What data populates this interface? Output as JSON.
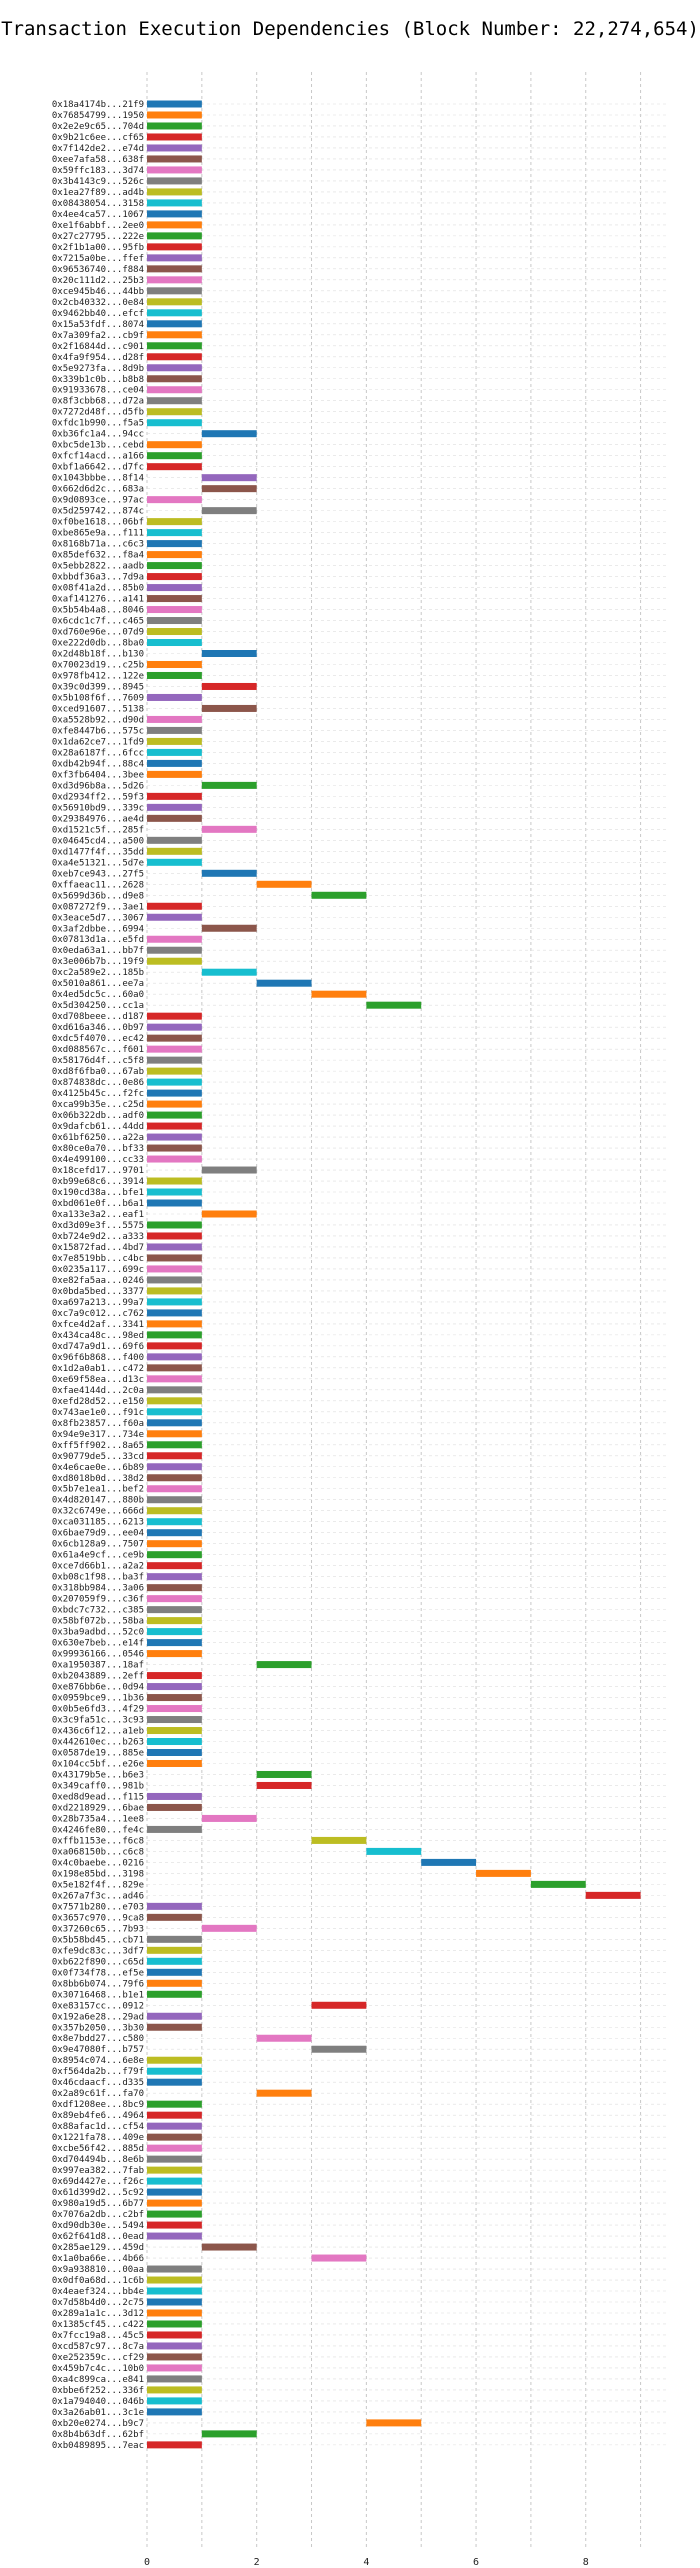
{
  "chart_data": {
    "type": "bar",
    "orientation": "horizontal-gantt",
    "title": "Transaction Execution Dependencies (Block Number: 22,274,654)",
    "xlabel": "",
    "ylabel": "",
    "xlim": [
      0,
      9.5
    ],
    "xticks": [
      0,
      2,
      4,
      6,
      8
    ],
    "grid": true,
    "legend": "none",
    "palette": [
      "#1f77b4",
      "#ff7f0e",
      "#2ca02c",
      "#d62728",
      "#9467bd",
      "#8c564b",
      "#e377c2",
      "#7f7f7f",
      "#bcbd22",
      "#17becf"
    ],
    "transactions": [
      {
        "label": "0x18a4174b...21f9",
        "start": 0
      },
      {
        "label": "0x76854799...1950",
        "start": 0
      },
      {
        "label": "0x2e2e9c65...704d",
        "start": 0
      },
      {
        "label": "0x9b21c6ee...cf65",
        "start": 0
      },
      {
        "label": "0x7f142de2...e74d",
        "start": 0
      },
      {
        "label": "0xee7afa58...638f",
        "start": 0
      },
      {
        "label": "0x59ffc183...3d74",
        "start": 0
      },
      {
        "label": "0x3b4143c9...526c",
        "start": 0
      },
      {
        "label": "0x1ea27f89...ad4b",
        "start": 0
      },
      {
        "label": "0x08438054...3158",
        "start": 0
      },
      {
        "label": "0x4ee4ca57...1067",
        "start": 0
      },
      {
        "label": "0xe1f6abbf...2ee0",
        "start": 0
      },
      {
        "label": "0x27c27795...222e",
        "start": 0
      },
      {
        "label": "0x2f1b1a00...95fb",
        "start": 0
      },
      {
        "label": "0x7215a0be...ffef",
        "start": 0
      },
      {
        "label": "0x96536740...f884",
        "start": 0
      },
      {
        "label": "0x20c111d2...25b3",
        "start": 0
      },
      {
        "label": "0xce945b46...44bb",
        "start": 0
      },
      {
        "label": "0x2cb40332...0e84",
        "start": 0
      },
      {
        "label": "0x9462bb40...efcf",
        "start": 0
      },
      {
        "label": "0x15a53fdf...8074",
        "start": 0
      },
      {
        "label": "0x7a309fa2...cb9f",
        "start": 0
      },
      {
        "label": "0x2f16844d...c901",
        "start": 0
      },
      {
        "label": "0x4fa9f954...d28f",
        "start": 0
      },
      {
        "label": "0x5e9273fa...8d9b",
        "start": 0
      },
      {
        "label": "0x339b1c0b...b8b8",
        "start": 0
      },
      {
        "label": "0x91933678...ce04",
        "start": 0
      },
      {
        "label": "0x8f3cbb68...d72a",
        "start": 0
      },
      {
        "label": "0x7272d48f...d5fb",
        "start": 0
      },
      {
        "label": "0xfdc1b990...f5a5",
        "start": 0
      },
      {
        "label": "0xb36fc1a4...94cc",
        "start": 1
      },
      {
        "label": "0xbc5de13b...cebd",
        "start": 0
      },
      {
        "label": "0xfcf14acd...a166",
        "start": 0
      },
      {
        "label": "0xbf1a6642...d7fc",
        "start": 0
      },
      {
        "label": "0x1043bbbe...8f14",
        "start": 1
      },
      {
        "label": "0x662d6d2c...683a",
        "start": 1
      },
      {
        "label": "0x9d0893ce...97ac",
        "start": 0
      },
      {
        "label": "0x5d259742...874c",
        "start": 1
      },
      {
        "label": "0xf0be1618...06bf",
        "start": 0
      },
      {
        "label": "0xbe865e9a...f111",
        "start": 0
      },
      {
        "label": "0x8168b71a...c6c3",
        "start": 0
      },
      {
        "label": "0x85def632...f8a4",
        "start": 0
      },
      {
        "label": "0x5ebb2822...aadb",
        "start": 0
      },
      {
        "label": "0xbbdf36a3...7d9a",
        "start": 0
      },
      {
        "label": "0x08f41a2d...85b0",
        "start": 0
      },
      {
        "label": "0xaf141276...a141",
        "start": 0
      },
      {
        "label": "0x5b54b4a8...8046",
        "start": 0
      },
      {
        "label": "0x6cdc1c7f...c465",
        "start": 0
      },
      {
        "label": "0xd760e96e...07d9",
        "start": 0
      },
      {
        "label": "0xe222d0db...8ba0",
        "start": 0
      },
      {
        "label": "0x2d48b18f...b130",
        "start": 1
      },
      {
        "label": "0x70023d19...c25b",
        "start": 0
      },
      {
        "label": "0x978fb412...122e",
        "start": 0
      },
      {
        "label": "0x39c0d399...8945",
        "start": 1
      },
      {
        "label": "0x5b108f6f...7609",
        "start": 0
      },
      {
        "label": "0xced91607...5138",
        "start": 1
      },
      {
        "label": "0xa5528b92...d90d",
        "start": 0
      },
      {
        "label": "0xfe8447b6...575c",
        "start": 0
      },
      {
        "label": "0x1da62ce7...1fd9",
        "start": 0
      },
      {
        "label": "0x28a6187f...6fcc",
        "start": 0
      },
      {
        "label": "0xdb42b94f...88c4",
        "start": 0
      },
      {
        "label": "0xf3fb6404...3bee",
        "start": 0
      },
      {
        "label": "0xd3d96b8a...5d26",
        "start": 1
      },
      {
        "label": "0xd2934ff2...59f3",
        "start": 0
      },
      {
        "label": "0x56910bd9...339c",
        "start": 0
      },
      {
        "label": "0x29384976...ae4d",
        "start": 0
      },
      {
        "label": "0xd1521c5f...285f",
        "start": 1
      },
      {
        "label": "0x04645cd4...a500",
        "start": 0
      },
      {
        "label": "0xd1477f4f...35dd",
        "start": 0
      },
      {
        "label": "0xa4e51321...5d7e",
        "start": 0
      },
      {
        "label": "0xeb7ce943...27f5",
        "start": 1
      },
      {
        "label": "0xffaeac11...2628",
        "start": 2
      },
      {
        "label": "0x5699d36b...d9e8",
        "start": 3
      },
      {
        "label": "0x087272f9...3ae1",
        "start": 0
      },
      {
        "label": "0x3eace5d7...3067",
        "start": 0
      },
      {
        "label": "0x3af2dbbe...6994",
        "start": 1
      },
      {
        "label": "0x07813d1a...e5fd",
        "start": 0
      },
      {
        "label": "0x0eda63a1...bb7f",
        "start": 0
      },
      {
        "label": "0x3e006b7b...19f9",
        "start": 0
      },
      {
        "label": "0xc2a589e2...185b",
        "start": 1
      },
      {
        "label": "0x5010a861...ee7a",
        "start": 2
      },
      {
        "label": "0x4ed5dc5c...60a0",
        "start": 3
      },
      {
        "label": "0x5d304250...cc1a",
        "start": 4
      },
      {
        "label": "0xd708beee...d187",
        "start": 0
      },
      {
        "label": "0xd616a346...0b97",
        "start": 0
      },
      {
        "label": "0xdc5f4070...ec42",
        "start": 0
      },
      {
        "label": "0xd088567c...f601",
        "start": 0
      },
      {
        "label": "0x58176d4f...c5f8",
        "start": 0
      },
      {
        "label": "0xd8f6fba0...67ab",
        "start": 0
      },
      {
        "label": "0x874838dc...0e86",
        "start": 0
      },
      {
        "label": "0x4125b45c...f2fc",
        "start": 0
      },
      {
        "label": "0xca99b35e...c25d",
        "start": 0
      },
      {
        "label": "0x06b322db...adf0",
        "start": 0
      },
      {
        "label": "0x9dafcb61...44dd",
        "start": 0
      },
      {
        "label": "0x61bf6250...a22a",
        "start": 0
      },
      {
        "label": "0x80ce0a70...bf33",
        "start": 0
      },
      {
        "label": "0x4e499100...cc33",
        "start": 0
      },
      {
        "label": "0x18cefd17...9701",
        "start": 1
      },
      {
        "label": "0xb99e68c6...3914",
        "start": 0
      },
      {
        "label": "0x190cd38a...bfe1",
        "start": 0
      },
      {
        "label": "0xbd061e0f...b6a1",
        "start": 0
      },
      {
        "label": "0xa133e3a2...eaf1",
        "start": 1
      },
      {
        "label": "0xd3d09e3f...5575",
        "start": 0
      },
      {
        "label": "0xb724e9d2...a333",
        "start": 0
      },
      {
        "label": "0x15872fad...4bd7",
        "start": 0
      },
      {
        "label": "0x7e8519bb...c4bc",
        "start": 0
      },
      {
        "label": "0x0235a117...699c",
        "start": 0
      },
      {
        "label": "0xe82fa5aa...0246",
        "start": 0
      },
      {
        "label": "0x0bda5bed...3377",
        "start": 0
      },
      {
        "label": "0xa697a213...99a7",
        "start": 0
      },
      {
        "label": "0xc7a9c012...c762",
        "start": 0
      },
      {
        "label": "0xfce4d2af...3341",
        "start": 0
      },
      {
        "label": "0x434ca48c...98ed",
        "start": 0
      },
      {
        "label": "0xd747a9d1...69f6",
        "start": 0
      },
      {
        "label": "0x96f6b868...f400",
        "start": 0
      },
      {
        "label": "0x1d2a0ab1...c472",
        "start": 0
      },
      {
        "label": "0xe69f58ea...d13c",
        "start": 0
      },
      {
        "label": "0xfae4144d...2c0a",
        "start": 0
      },
      {
        "label": "0xefd28d52...e150",
        "start": 0
      },
      {
        "label": "0x743ae1e0...f91c",
        "start": 0
      },
      {
        "label": "0x8fb23857...f60a",
        "start": 0
      },
      {
        "label": "0x94e9e317...734e",
        "start": 0
      },
      {
        "label": "0xff5ff902...8a65",
        "start": 0
      },
      {
        "label": "0x90779de5...33cd",
        "start": 0
      },
      {
        "label": "0x4e6cae0e...6b89",
        "start": 0
      },
      {
        "label": "0xd8018b0d...38d2",
        "start": 0
      },
      {
        "label": "0x5b7e1ea1...bef2",
        "start": 0
      },
      {
        "label": "0x4d820147...880b",
        "start": 0
      },
      {
        "label": "0x32c6749e...666d",
        "start": 0
      },
      {
        "label": "0xca031185...6213",
        "start": 0
      },
      {
        "label": "0x6bae79d9...ee04",
        "start": 0
      },
      {
        "label": "0x6cb128a9...7507",
        "start": 0
      },
      {
        "label": "0x61a4e9cf...ce9b",
        "start": 0
      },
      {
        "label": "0xce7d66b1...a2a2",
        "start": 0
      },
      {
        "label": "0xb08c1f98...ba3f",
        "start": 0
      },
      {
        "label": "0x318bb984...3a06",
        "start": 0
      },
      {
        "label": "0x207059f9...c36f",
        "start": 0
      },
      {
        "label": "0xbdc7c732...c385",
        "start": 0
      },
      {
        "label": "0x58bf072b...58ba",
        "start": 0
      },
      {
        "label": "0x3ba9adbd...52c0",
        "start": 0
      },
      {
        "label": "0x630e7beb...e14f",
        "start": 0
      },
      {
        "label": "0x99936166...0546",
        "start": 0
      },
      {
        "label": "0xa1950387...18af",
        "start": 2
      },
      {
        "label": "0xb2043889...2eff",
        "start": 0
      },
      {
        "label": "0xe876bb6e...0d94",
        "start": 0
      },
      {
        "label": "0x0959bce9...1b36",
        "start": 0
      },
      {
        "label": "0x0b5e6fd3...4f29",
        "start": 0
      },
      {
        "label": "0x3c9fa51c...3c93",
        "start": 0
      },
      {
        "label": "0x436c6f12...a1eb",
        "start": 0
      },
      {
        "label": "0x442610ec...b263",
        "start": 0
      },
      {
        "label": "0x0587de19...885e",
        "start": 0
      },
      {
        "label": "0x104cc5bf...e26e",
        "start": 0
      },
      {
        "label": "0x43179b5e...b6e3",
        "start": 2
      },
      {
        "label": "0x349caff0...981b",
        "start": 2
      },
      {
        "label": "0xed8d9ead...f115",
        "start": 0
      },
      {
        "label": "0xd2218929...6bae",
        "start": 0
      },
      {
        "label": "0x28b735a4...1ee8",
        "start": 1
      },
      {
        "label": "0x4246fe80...fe4c",
        "start": 0
      },
      {
        "label": "0xffb1153e...f6c8",
        "start": 3
      },
      {
        "label": "0xa068150b...c6c8",
        "start": 4
      },
      {
        "label": "0x4c0baebe...0216",
        "start": 5
      },
      {
        "label": "0x198e85bd...3198",
        "start": 6
      },
      {
        "label": "0x5e182f4f...829e",
        "start": 7
      },
      {
        "label": "0x267a7f3c...ad46",
        "start": 8
      },
      {
        "label": "0x7571b280...e703",
        "start": 0
      },
      {
        "label": "0x3657c970...9ca8",
        "start": 0
      },
      {
        "label": "0x37260c65...7b93",
        "start": 1
      },
      {
        "label": "0x5b58bd45...cb71",
        "start": 0
      },
      {
        "label": "0xfe9dc83c...3df7",
        "start": 0
      },
      {
        "label": "0xb622f890...c65d",
        "start": 0
      },
      {
        "label": "0x0f734f78...ef5e",
        "start": 0
      },
      {
        "label": "0x8bb6b074...79f6",
        "start": 0
      },
      {
        "label": "0x30716468...b1e1",
        "start": 0
      },
      {
        "label": "0xe83157cc...0912",
        "start": 3
      },
      {
        "label": "0x192a6e28...29ad",
        "start": 0
      },
      {
        "label": "0x357b2050...3b30",
        "start": 0
      },
      {
        "label": "0x8e7bdd27...c580",
        "start": 2
      },
      {
        "label": "0x9e47080f...b757",
        "start": 3
      },
      {
        "label": "0x8954c074...6e8e",
        "start": 0
      },
      {
        "label": "0xf564da2b...f79f",
        "start": 0
      },
      {
        "label": "0x46cdaacf...d335",
        "start": 0
      },
      {
        "label": "0x2a89c61f...fa70",
        "start": 2
      },
      {
        "label": "0xdf1208ee...8bc9",
        "start": 0
      },
      {
        "label": "0x89eb4fe6...4964",
        "start": 0
      },
      {
        "label": "0x88afac1d...cf54",
        "start": 0
      },
      {
        "label": "0x1221fa78...409e",
        "start": 0
      },
      {
        "label": "0xcbe56f42...885d",
        "start": 0
      },
      {
        "label": "0xd704494b...8e6b",
        "start": 0
      },
      {
        "label": "0x997ea382...7fab",
        "start": 0
      },
      {
        "label": "0x69d4427e...f26c",
        "start": 0
      },
      {
        "label": "0x61d399d2...5c92",
        "start": 0
      },
      {
        "label": "0x980a19d5...6b77",
        "start": 0
      },
      {
        "label": "0x7076a2db...c2bf",
        "start": 0
      },
      {
        "label": "0xd90db30e...5494",
        "start": 0
      },
      {
        "label": "0x62f641d8...0ead",
        "start": 0
      },
      {
        "label": "0x285ae129...459d",
        "start": 1
      },
      {
        "label": "0x1a0ba66e...4b66",
        "start": 3
      },
      {
        "label": "0x9a938810...00aa",
        "start": 0
      },
      {
        "label": "0x0df0a68d...1c6b",
        "start": 0
      },
      {
        "label": "0x4eaef324...bb4e",
        "start": 0
      },
      {
        "label": "0x7d58b4d0...2c75",
        "start": 0
      },
      {
        "label": "0x289a1a1c...3d12",
        "start": 0
      },
      {
        "label": "0x1385cf45...c422",
        "start": 0
      },
      {
        "label": "0x7fcc19a8...45c5",
        "start": 0
      },
      {
        "label": "0xcd587c97...8c7a",
        "start": 0
      },
      {
        "label": "0xe252359c...cf29",
        "start": 0
      },
      {
        "label": "0x459b7c4c...10b0",
        "start": 0
      },
      {
        "label": "0xa4c899ca...e841",
        "start": 0
      },
      {
        "label": "0xbbe6f252...336f",
        "start": 0
      },
      {
        "label": "0x1a794040...046b",
        "start": 0
      },
      {
        "label": "0x3a26ab01...3c1e",
        "start": 0
      },
      {
        "label": "0xb20e0274...b9c7",
        "start": 4
      },
      {
        "label": "0x8b4b63df...62bf",
        "start": 1
      },
      {
        "label": "0xb0489895...7eac",
        "start": 0
      }
    ]
  }
}
